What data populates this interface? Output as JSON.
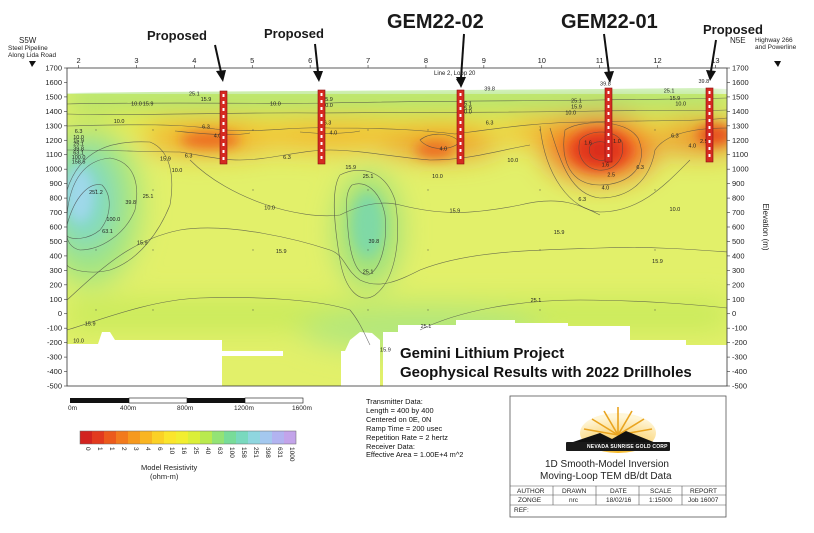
{
  "chart_data": {
    "type": "heatmap",
    "title": "",
    "xlabel": "",
    "ylabel": "Elevation (m)",
    "x_ticks": [
      "2",
      "3",
      "4",
      "5",
      "6",
      "7",
      "8",
      "9",
      "10",
      "11",
      "12",
      "13"
    ],
    "y_ticks": [
      "1700",
      "1600",
      "1500",
      "1400",
      "1300",
      "1200",
      "1100",
      "1000",
      "900",
      "800",
      "700",
      "600",
      "500",
      "400",
      "300",
      "200",
      "100",
      "0",
      "-100",
      "-200",
      "-300",
      "-400",
      "-500"
    ],
    "ylim": [
      -500,
      1700
    ],
    "xlim": [
      1.8,
      13.2
    ],
    "colorbar": {
      "title": "Model Resistivity (ohm-m)",
      "ticks": [
        "0",
        "1",
        "1",
        "2",
        "3",
        "4",
        "6",
        "10",
        "16",
        "25",
        "40",
        "63",
        "100",
        "158",
        "251",
        "398",
        "631",
        "1000"
      ],
      "colors": [
        "#d2231f",
        "#e23a1e",
        "#ec5a1c",
        "#f27a1d",
        "#f6991e",
        "#f9b522",
        "#fbd126",
        "#fbe52c",
        "#f2ee30",
        "#dbef38",
        "#b9ea4f",
        "#93e375",
        "#78dc99",
        "#79d9be",
        "#8fd6df",
        "#a4c8ef",
        "#b2b3f0",
        "#c3a4ea"
      ]
    },
    "contour_labels": [
      {
        "x": 4.0,
        "y": 1510,
        "text": "25.1"
      },
      {
        "x": 4.2,
        "y": 1470,
        "text": "15.9"
      },
      {
        "x": 3.0,
        "y": 1440,
        "text": "10.0"
      },
      {
        "x": 5.4,
        "y": 1440,
        "text": "10.0"
      },
      {
        "x": 2.7,
        "y": 1320,
        "text": "10.0"
      },
      {
        "x": 3.2,
        "y": 1440,
        "text": "15.9"
      },
      {
        "x": 4.2,
        "y": 1280,
        "text": "6.3"
      },
      {
        "x": 4.4,
        "y": 1220,
        "text": "4.0"
      },
      {
        "x": 6.3,
        "y": 1470,
        "text": "15.9"
      },
      {
        "x": 6.3,
        "y": 1430,
        "text": "10.0"
      },
      {
        "x": 6.3,
        "y": 1310,
        "text": "6.3"
      },
      {
        "x": 6.4,
        "y": 1240,
        "text": "4.0"
      },
      {
        "x": 5.6,
        "y": 1070,
        "text": "6.3"
      },
      {
        "x": 2.0,
        "y": 1250,
        "text": "6.3"
      },
      {
        "x": 2.0,
        "y": 1210,
        "text": "10.0"
      },
      {
        "x": 2.0,
        "y": 1185,
        "text": "15.9"
      },
      {
        "x": 2.0,
        "y": 1165,
        "text": "25.1"
      },
      {
        "x": 2.0,
        "y": 1130,
        "text": "39.8"
      },
      {
        "x": 2.0,
        "y": 1100,
        "text": "63.1"
      },
      {
        "x": 2.0,
        "y": 1070,
        "text": "100.0"
      },
      {
        "x": 2.0,
        "y": 1040,
        "text": "158.5"
      },
      {
        "x": 2.3,
        "y": 830,
        "text": "251.2"
      },
      {
        "x": 2.6,
        "y": 640,
        "text": "100.0"
      },
      {
        "x": 2.5,
        "y": 560,
        "text": "63.1"
      },
      {
        "x": 2.9,
        "y": 760,
        "text": "39.8"
      },
      {
        "x": 3.2,
        "y": 800,
        "text": "25.1"
      },
      {
        "x": 3.7,
        "y": 980,
        "text": "10.0"
      },
      {
        "x": 3.5,
        "y": 1060,
        "text": "15.9"
      },
      {
        "x": 3.9,
        "y": 1080,
        "text": "6.3"
      },
      {
        "x": 3.1,
        "y": 480,
        "text": "15.9"
      },
      {
        "x": 2.2,
        "y": -80,
        "text": "15.9"
      },
      {
        "x": 2.0,
        "y": -200,
        "text": "10.0"
      },
      {
        "x": 5.3,
        "y": 720,
        "text": "10.0"
      },
      {
        "x": 5.5,
        "y": 420,
        "text": "15.9"
      },
      {
        "x": 6.7,
        "y": 1000,
        "text": "15.9"
      },
      {
        "x": 7.0,
        "y": 940,
        "text": "25.1"
      },
      {
        "x": 7.1,
        "y": 490,
        "text": "39.8"
      },
      {
        "x": 7.0,
        "y": 280,
        "text": "25.1"
      },
      {
        "x": 7.3,
        "y": -260,
        "text": "15.9"
      },
      {
        "x": 8.0,
        "y": -100,
        "text": "25.1"
      },
      {
        "x": 8.3,
        "y": 1130,
        "text": "4.0"
      },
      {
        "x": 8.2,
        "y": 940,
        "text": "10.0"
      },
      {
        "x": 8.7,
        "y": 1440,
        "text": "25.1"
      },
      {
        "x": 8.7,
        "y": 1410,
        "text": "15.9"
      },
      {
        "x": 8.7,
        "y": 1385,
        "text": "10.0"
      },
      {
        "x": 9.1,
        "y": 1310,
        "text": "6.3"
      },
      {
        "x": 9.1,
        "y": 1545,
        "text": "39.8"
      },
      {
        "x": 9.5,
        "y": 1050,
        "text": "10.0"
      },
      {
        "x": 8.5,
        "y": 700,
        "text": "15.9"
      },
      {
        "x": 9.9,
        "y": 80,
        "text": "25.1"
      },
      {
        "x": 10.3,
        "y": 550,
        "text": "15.9"
      },
      {
        "x": 10.6,
        "y": 1460,
        "text": "25.1"
      },
      {
        "x": 10.6,
        "y": 1420,
        "text": "15.9"
      },
      {
        "x": 10.5,
        "y": 1380,
        "text": "10.0"
      },
      {
        "x": 10.8,
        "y": 1170,
        "text": "1.6"
      },
      {
        "x": 11.3,
        "y": 1180,
        "text": "1.0"
      },
      {
        "x": 11.1,
        "y": 1020,
        "text": "1.6"
      },
      {
        "x": 11.2,
        "y": 950,
        "text": "2.5"
      },
      {
        "x": 11.1,
        "y": 860,
        "text": "4.0"
      },
      {
        "x": 10.7,
        "y": 780,
        "text": "6.3"
      },
      {
        "x": 11.1,
        "y": 1580,
        "text": "39.8"
      },
      {
        "x": 12.2,
        "y": 1530,
        "text": "25.1"
      },
      {
        "x": 12.3,
        "y": 1480,
        "text": "15.9"
      },
      {
        "x": 12.4,
        "y": 1440,
        "text": "10.0"
      },
      {
        "x": 12.3,
        "y": 1220,
        "text": "6.3"
      },
      {
        "x": 12.6,
        "y": 1150,
        "text": "4.0"
      },
      {
        "x": 12.8,
        "y": 1180,
        "text": "2.5"
      },
      {
        "x": 11.7,
        "y": 1000,
        "text": "6.3"
      },
      {
        "x": 12.3,
        "y": 710,
        "text": "10.0"
      },
      {
        "x": 12.0,
        "y": 350,
        "text": "15.9"
      },
      {
        "x": 12.8,
        "y": 1595,
        "text": "39.8"
      }
    ]
  },
  "annotations": {
    "proposed_1": "Proposed",
    "proposed_2": "Proposed",
    "gem22_02": "GEM22-02",
    "gem22_01": "GEM22-01",
    "proposed_3": "Proposed",
    "left_end_code": "S5W",
    "left_end_label_1": "Steel Pipeline",
    "left_end_label_2": "Along Lida Road",
    "right_end_code": "N5E",
    "right_end_label_1": "Highway 266",
    "right_end_label_2": "and Powerline",
    "loop_label": "Line 2, Loop 20"
  },
  "scale_bar": {
    "ticks": [
      "0m",
      "400m",
      "800m",
      "1200m",
      "1600m"
    ]
  },
  "project_title": {
    "line1": "Gemini Lithium Project",
    "line2": "Geophysical Results with 2022 Drillholes"
  },
  "transmitter_info": [
    "Transmitter Data:",
    "Length = 400 by 400",
    "Centered on 0E, 0N",
    "Ramp Time = 200 usec",
    "Repetition Rate = 2 hertz",
    "Receiver Data:",
    "Effective Area = 1.00E+4 m^2"
  ],
  "title_block": {
    "logo_text": "NEVADA SUNRISE GOLD CORP",
    "line1": "1D Smooth-Model Inversion",
    "line2": "Moving-Loop TEM dB/dt Data",
    "headers": [
      "AUTHOR",
      "DRAWN",
      "DATE",
      "SCALE",
      "REPORT"
    ],
    "values": [
      "ZONGE",
      "nrc",
      "18/02/16",
      "1:15000",
      "Job 16007"
    ],
    "ref_label": "REF:"
  }
}
